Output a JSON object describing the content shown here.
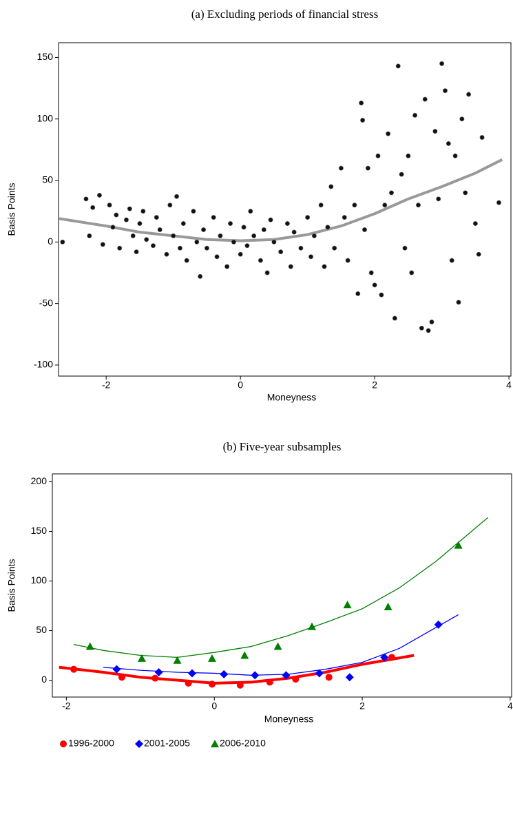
{
  "chart_data": [
    {
      "type": "scatter",
      "title": "(a)  Excluding periods of financial stress",
      "xlabel": "Moneyness",
      "ylabel": "Basis Points",
      "xlim": [
        -2.71,
        4.03
      ],
      "ylim": [
        -109,
        162
      ],
      "xticks": [
        -2,
        0,
        2,
        4
      ],
      "yticks": [
        -100,
        -50,
        0,
        50,
        100,
        150
      ],
      "series": [
        {
          "color": "#111111",
          "x": [
            -2.65,
            -2.3,
            -2.25,
            -2.2,
            -2.1,
            -2.05,
            -1.95,
            -1.9,
            -1.85,
            -1.8,
            -1.7,
            -1.65,
            -1.6,
            -1.55,
            -1.5,
            -1.45,
            -1.4,
            -1.3,
            -1.25,
            -1.2,
            -1.1,
            -1.05,
            -1,
            -0.95,
            -0.9,
            -0.85,
            -0.8,
            -0.7,
            -0.65,
            -0.6,
            -0.55,
            -0.5,
            -0.4,
            -0.35,
            -0.3,
            -0.2,
            -0.15,
            -0.1,
            0,
            0.05,
            0.1,
            0.15,
            0.2,
            0.3,
            0.35,
            0.4,
            0.45,
            0.5,
            0.6,
            0.7,
            0.75,
            0.8,
            0.9,
            1,
            1.05,
            1.1,
            1.2,
            1.25,
            1.3,
            1.35,
            1.4,
            1.5,
            1.55,
            1.6,
            1.7,
            1.75,
            1.8,
            1.82,
            1.85,
            1.9,
            1.95,
            2,
            2.05,
            2.1,
            2.15,
            2.2,
            2.25,
            2.3,
            2.35,
            2.4,
            2.45,
            2.5,
            2.55,
            2.6,
            2.65,
            2.7,
            2.75,
            2.8,
            2.85,
            2.9,
            2.95,
            3,
            3.05,
            3.1,
            3.15,
            3.2,
            3.25,
            3.3,
            3.35,
            3.4,
            3.5,
            3.55,
            3.6,
            3.85
          ],
          "values": [
            0,
            35,
            5,
            28,
            38,
            -2,
            30,
            12,
            22,
            -5,
            18,
            27,
            5,
            -8,
            15,
            25,
            2,
            -3,
            20,
            10,
            -10,
            30,
            5,
            37,
            -5,
            15,
            -15,
            25,
            0,
            -28,
            10,
            -5,
            20,
            -12,
            5,
            -20,
            15,
            0,
            -10,
            12,
            -3,
            25,
            5,
            -15,
            10,
            -25,
            18,
            0,
            -8,
            15,
            -20,
            8,
            -5,
            20,
            -12,
            5,
            30,
            -20,
            12,
            45,
            -5,
            60,
            20,
            -15,
            30,
            -42,
            113,
            99,
            10,
            60,
            -25,
            -35,
            70,
            -43,
            30,
            88,
            40,
            -62,
            143,
            55,
            -5,
            70,
            -25,
            103,
            30,
            -70,
            116,
            -72,
            -65,
            90,
            35,
            145,
            123,
            80,
            -15,
            70,
            -49,
            100,
            40,
            120,
            15,
            -10,
            85,
            32
          ]
        }
      ],
      "fit": {
        "color": "#999999",
        "line_width": 4,
        "x": [
          -2.7,
          -2,
          -1.5,
          -1,
          -0.5,
          0,
          0.5,
          1,
          1.5,
          2,
          2.5,
          3,
          3.5,
          3.9
        ],
        "values": [
          19,
          13,
          8,
          5,
          2,
          1,
          2,
          6,
          13,
          23,
          35,
          45,
          56,
          67
        ]
      }
    },
    {
      "type": "scatter",
      "title": "(b)  Five-year subsamples",
      "xlabel": "Moneyness",
      "ylabel": "Basis Points",
      "xlim": [
        -2.19,
        4.02
      ],
      "ylim": [
        -17,
        208
      ],
      "xticks": [
        -2,
        0,
        2,
        4
      ],
      "yticks": [
        0,
        50,
        100,
        150,
        200
      ],
      "series": [
        {
          "name": "1996-2000",
          "color": "#ff0000",
          "marker": "circle",
          "x": [
            -1.9,
            -1.25,
            -0.8,
            -0.35,
            -0.03,
            0.35,
            0.75,
            1.1,
            1.55,
            2.4
          ],
          "values": [
            11,
            3,
            2,
            -3,
            -4,
            -5,
            -2,
            1,
            3,
            23
          ],
          "fit": {
            "line_width": 4,
            "x": [
              -2.1,
              -1.5,
              -1,
              -0.5,
              0,
              0.5,
              1,
              1.5,
              2,
              2.7
            ],
            "values": [
              13,
              8,
              3,
              0,
              -3,
              -2,
              2,
              8,
              16,
              25
            ]
          }
        },
        {
          "name": "2001-2005",
          "color": "#0000ff",
          "marker": "diamond",
          "x": [
            -1.32,
            -0.75,
            -0.3,
            0.13,
            0.55,
            0.97,
            1.42,
            1.83,
            2.3,
            3.03
          ],
          "values": [
            11,
            8,
            7,
            6,
            5,
            5,
            7,
            3,
            23,
            56
          ],
          "fit": {
            "line_width": 1.3,
            "x": [
              -1.5,
              -1,
              -0.5,
              0,
              0.5,
              1,
              1.5,
              2,
              2.5,
              3.3
            ],
            "values": [
              13,
              10,
              8,
              7,
              5,
              6,
              11,
              18,
              32,
              66
            ]
          }
        },
        {
          "name": "2006-2010",
          "color": "#008000",
          "marker": "triangle",
          "x": [
            -1.68,
            -0.98,
            -0.5,
            -0.03,
            0.41,
            0.86,
            1.32,
            1.8,
            2.35,
            3.3
          ],
          "values": [
            34,
            22,
            20,
            22,
            25,
            34,
            54,
            76,
            74,
            136
          ],
          "fit": {
            "line_width": 1.3,
            "x": [
              -1.9,
              -1.5,
              -1,
              -0.5,
              0,
              0.5,
              1,
              1.5,
              2,
              2.5,
              3,
              3.7
            ],
            "values": [
              36,
              30,
              25,
              23,
              28,
              34,
              45,
              58,
              72,
              93,
              120,
              164
            ]
          }
        }
      ]
    }
  ]
}
